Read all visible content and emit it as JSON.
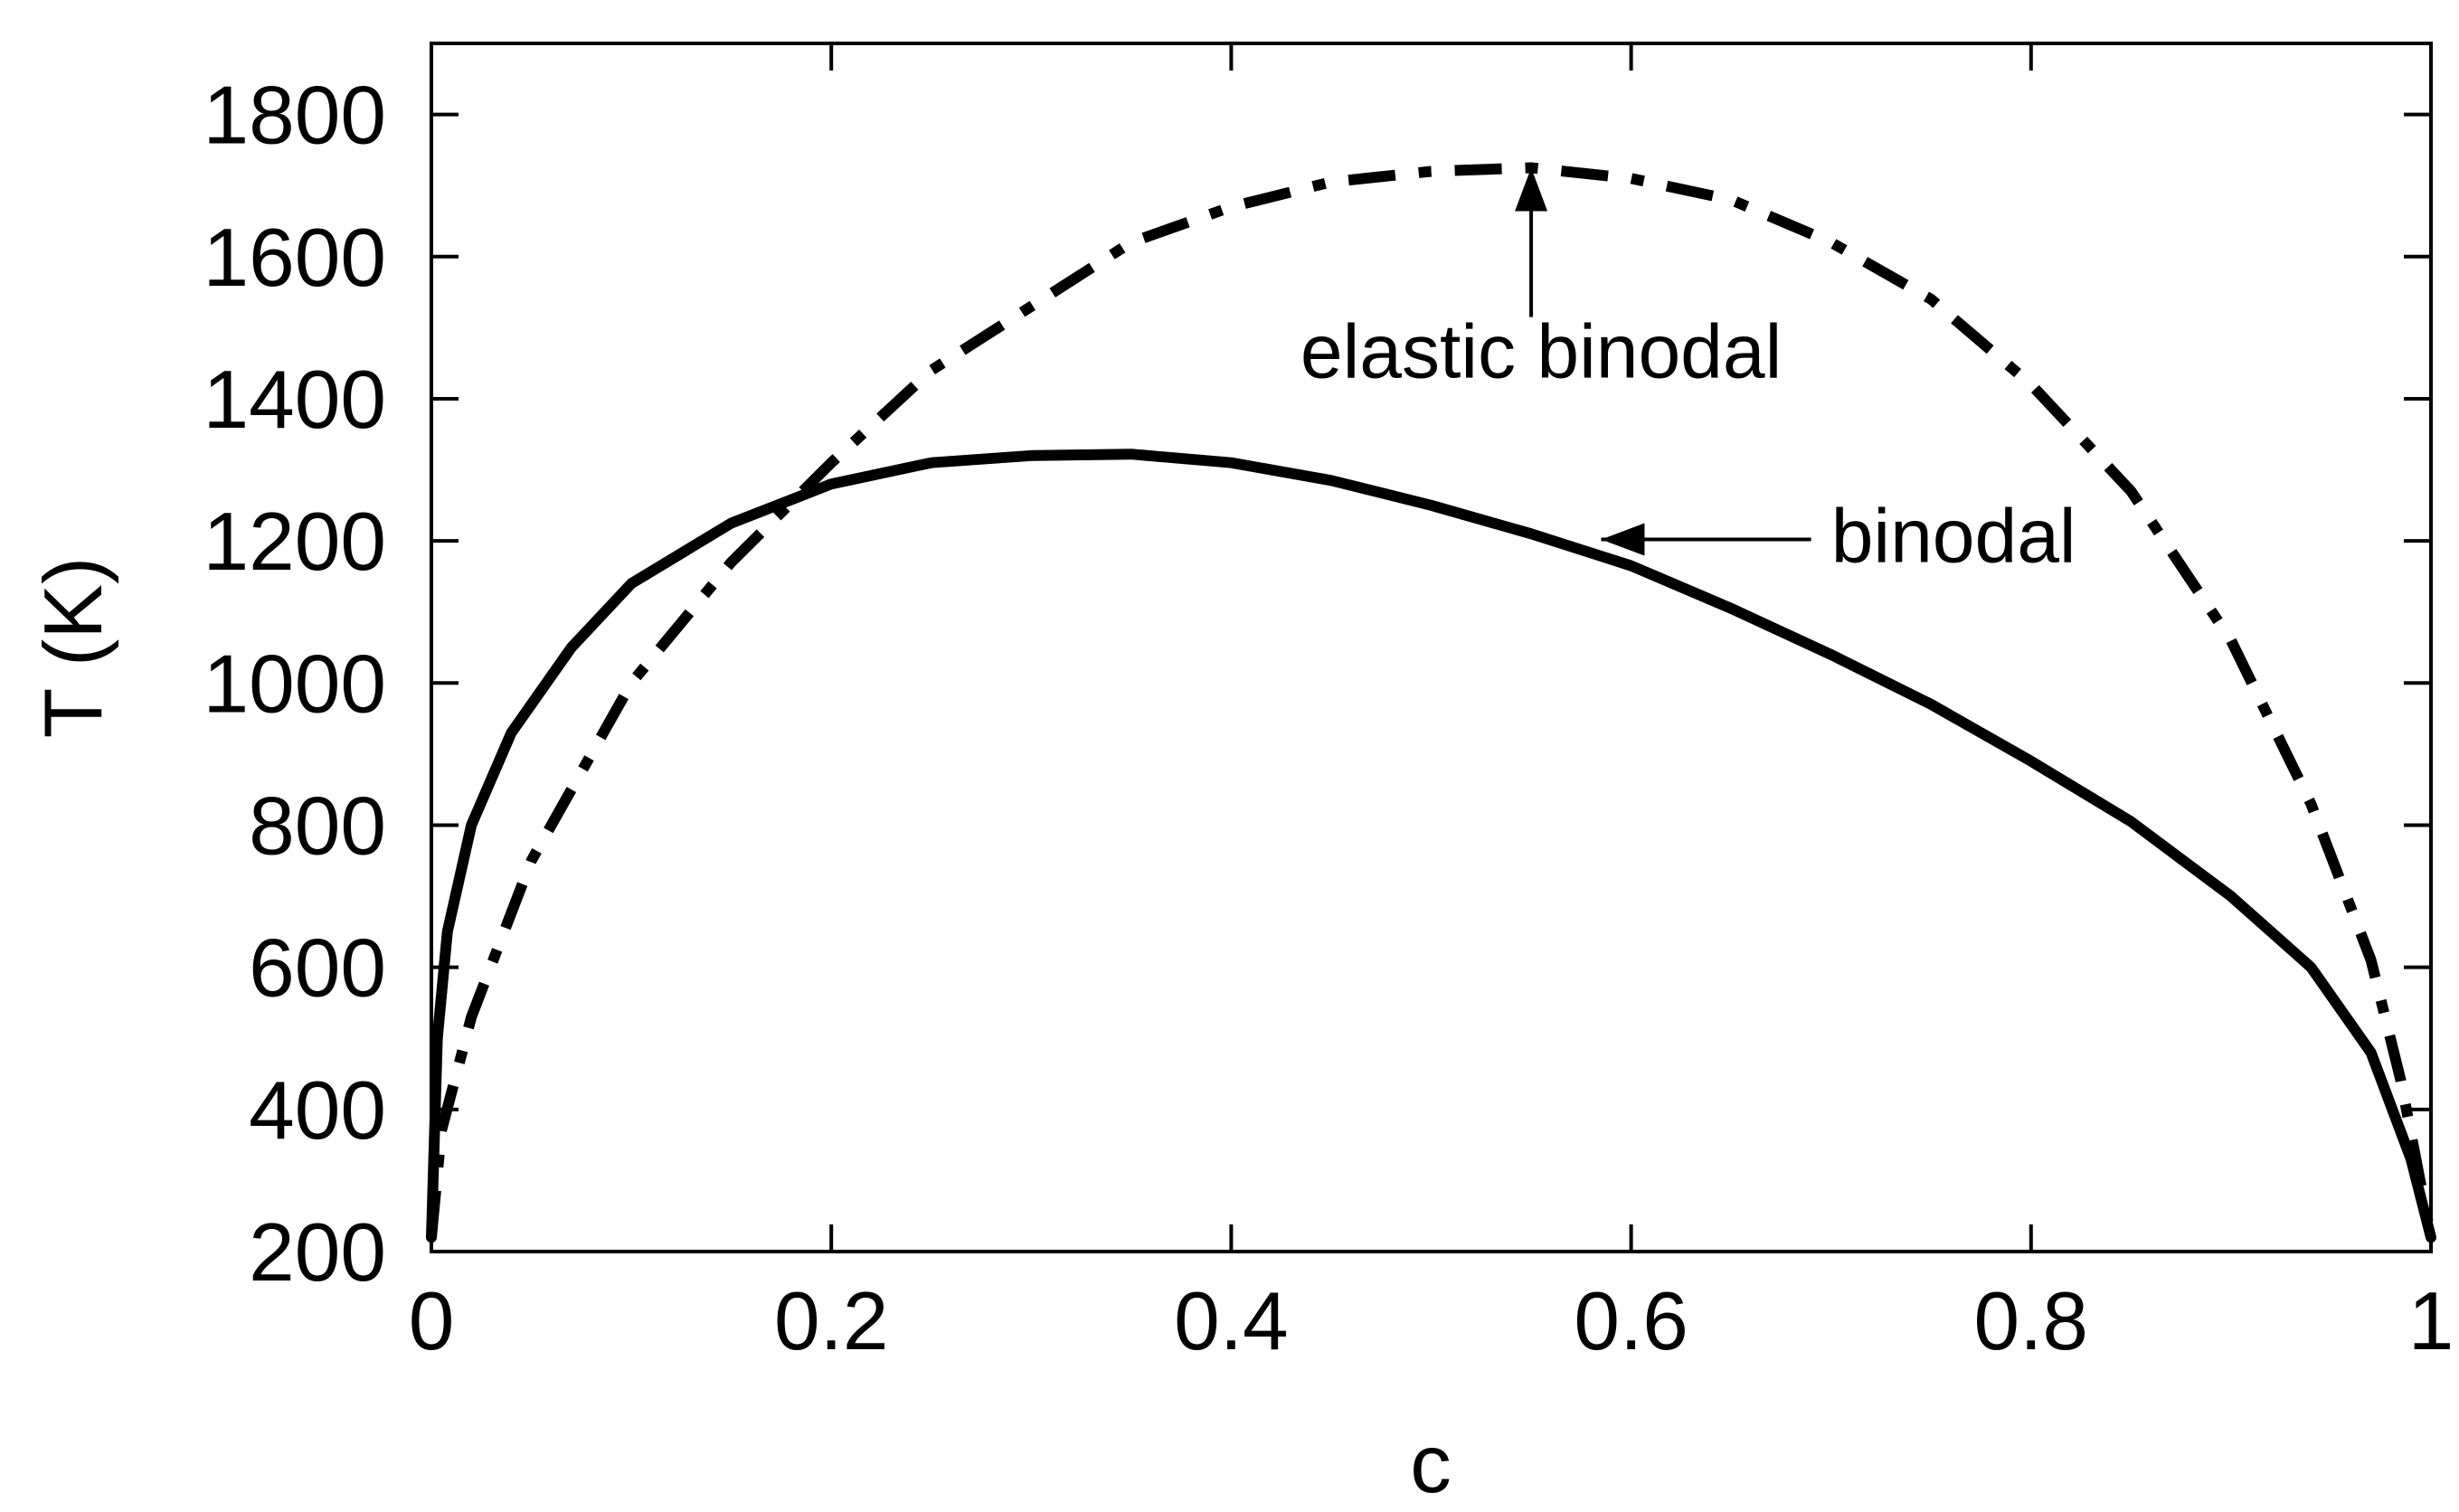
{
  "chart_data": {
    "type": "line",
    "title": "",
    "xlabel": "c",
    "ylabel": "T (K)",
    "xlim": [
      0,
      1
    ],
    "ylim": [
      200,
      1900
    ],
    "xticks": [
      "0",
      "0.2",
      "0.4",
      "0.6",
      "0.8",
      "1"
    ],
    "yticks": [
      "200",
      "400",
      "600",
      "800",
      "1000",
      "1200",
      "1400",
      "1600",
      "1800"
    ],
    "grid": false,
    "legend": "none",
    "series": [
      {
        "line_style": "solid",
        "color": "#000000",
        "x": [
          0.0,
          0.003,
          0.008,
          0.02,
          0.04,
          0.07,
          0.1,
          0.15,
          0.2,
          0.25,
          0.3,
          0.35,
          0.4,
          0.45,
          0.5,
          0.55,
          0.6,
          0.65,
          0.7,
          0.75,
          0.8,
          0.85,
          0.9,
          0.94,
          0.97,
          0.99,
          1.0
        ],
        "y": [
          220,
          500,
          650,
          800,
          930,
          1050,
          1140,
          1225,
          1280,
          1310,
          1320,
          1322,
          1310,
          1285,
          1250,
          1210,
          1165,
          1105,
          1040,
          970,
          890,
          805,
          700,
          600,
          480,
          330,
          220
        ]
      },
      {
        "line_style": "dash-dot",
        "color": "#000000",
        "x": [
          0.0,
          0.005,
          0.02,
          0.05,
          0.1,
          0.15,
          0.2,
          0.25,
          0.3,
          0.35,
          0.4,
          0.45,
          0.5,
          0.55,
          0.6,
          0.65,
          0.7,
          0.75,
          0.8,
          0.85,
          0.9,
          0.94,
          0.97,
          0.985,
          1.0
        ],
        "y": [
          220,
          370,
          530,
          750,
          1000,
          1170,
          1310,
          1440,
          1530,
          1620,
          1670,
          1705,
          1720,
          1725,
          1710,
          1680,
          1620,
          1540,
          1420,
          1270,
          1060,
          830,
          610,
          440,
          220
        ]
      }
    ],
    "annotations": [
      {
        "text": "elastic binodal",
        "arrow_to": [
          0.55,
          1725
        ],
        "arrow_from": [
          0.55,
          1515
        ],
        "text_anchor": [
          0.555,
          1430
        ]
      },
      {
        "text": "binodal",
        "arrow_to": [
          0.585,
          1202
        ],
        "arrow_from": [
          0.69,
          1202
        ],
        "text_anchor": [
          0.7,
          1170
        ]
      }
    ]
  }
}
